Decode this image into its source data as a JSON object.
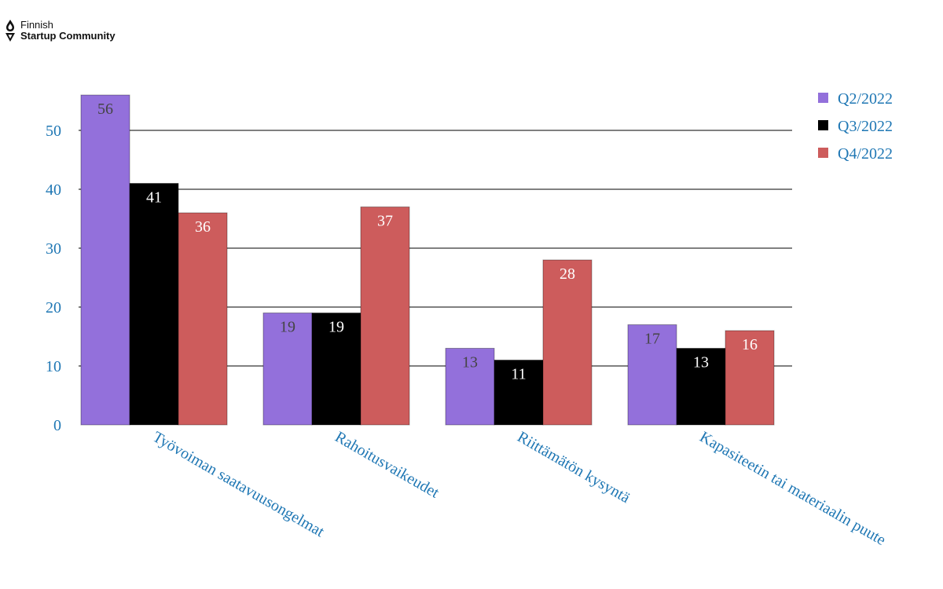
{
  "logo": {
    "line1": "Finnish",
    "line2": "Startup Community"
  },
  "chart_data": {
    "type": "bar",
    "categories": [
      "Työvoiman saatavuusongelmat",
      "Rahoitusvaikeudet",
      "Riittämätön kysyntä",
      "Kapasiteetin tai materiaalin puute"
    ],
    "series": [
      {
        "name": "Q2/2022",
        "values": [
          56,
          19,
          13,
          17
        ],
        "color": "#9370DB",
        "label_color": "#444444"
      },
      {
        "name": "Q3/2022",
        "values": [
          41,
          19,
          11,
          13
        ],
        "color": "#000000",
        "label_color": "#ffffff"
      },
      {
        "name": "Q4/2022",
        "values": [
          36,
          37,
          28,
          16
        ],
        "color": "#CD5C5C",
        "label_color": "#ffffff"
      }
    ],
    "yticks": [
      0,
      10,
      20,
      30,
      40,
      50
    ],
    "ylim": [
      0,
      56
    ],
    "grid": true,
    "legend_position": "top-right",
    "title": "",
    "xlabel": "",
    "ylabel": ""
  }
}
